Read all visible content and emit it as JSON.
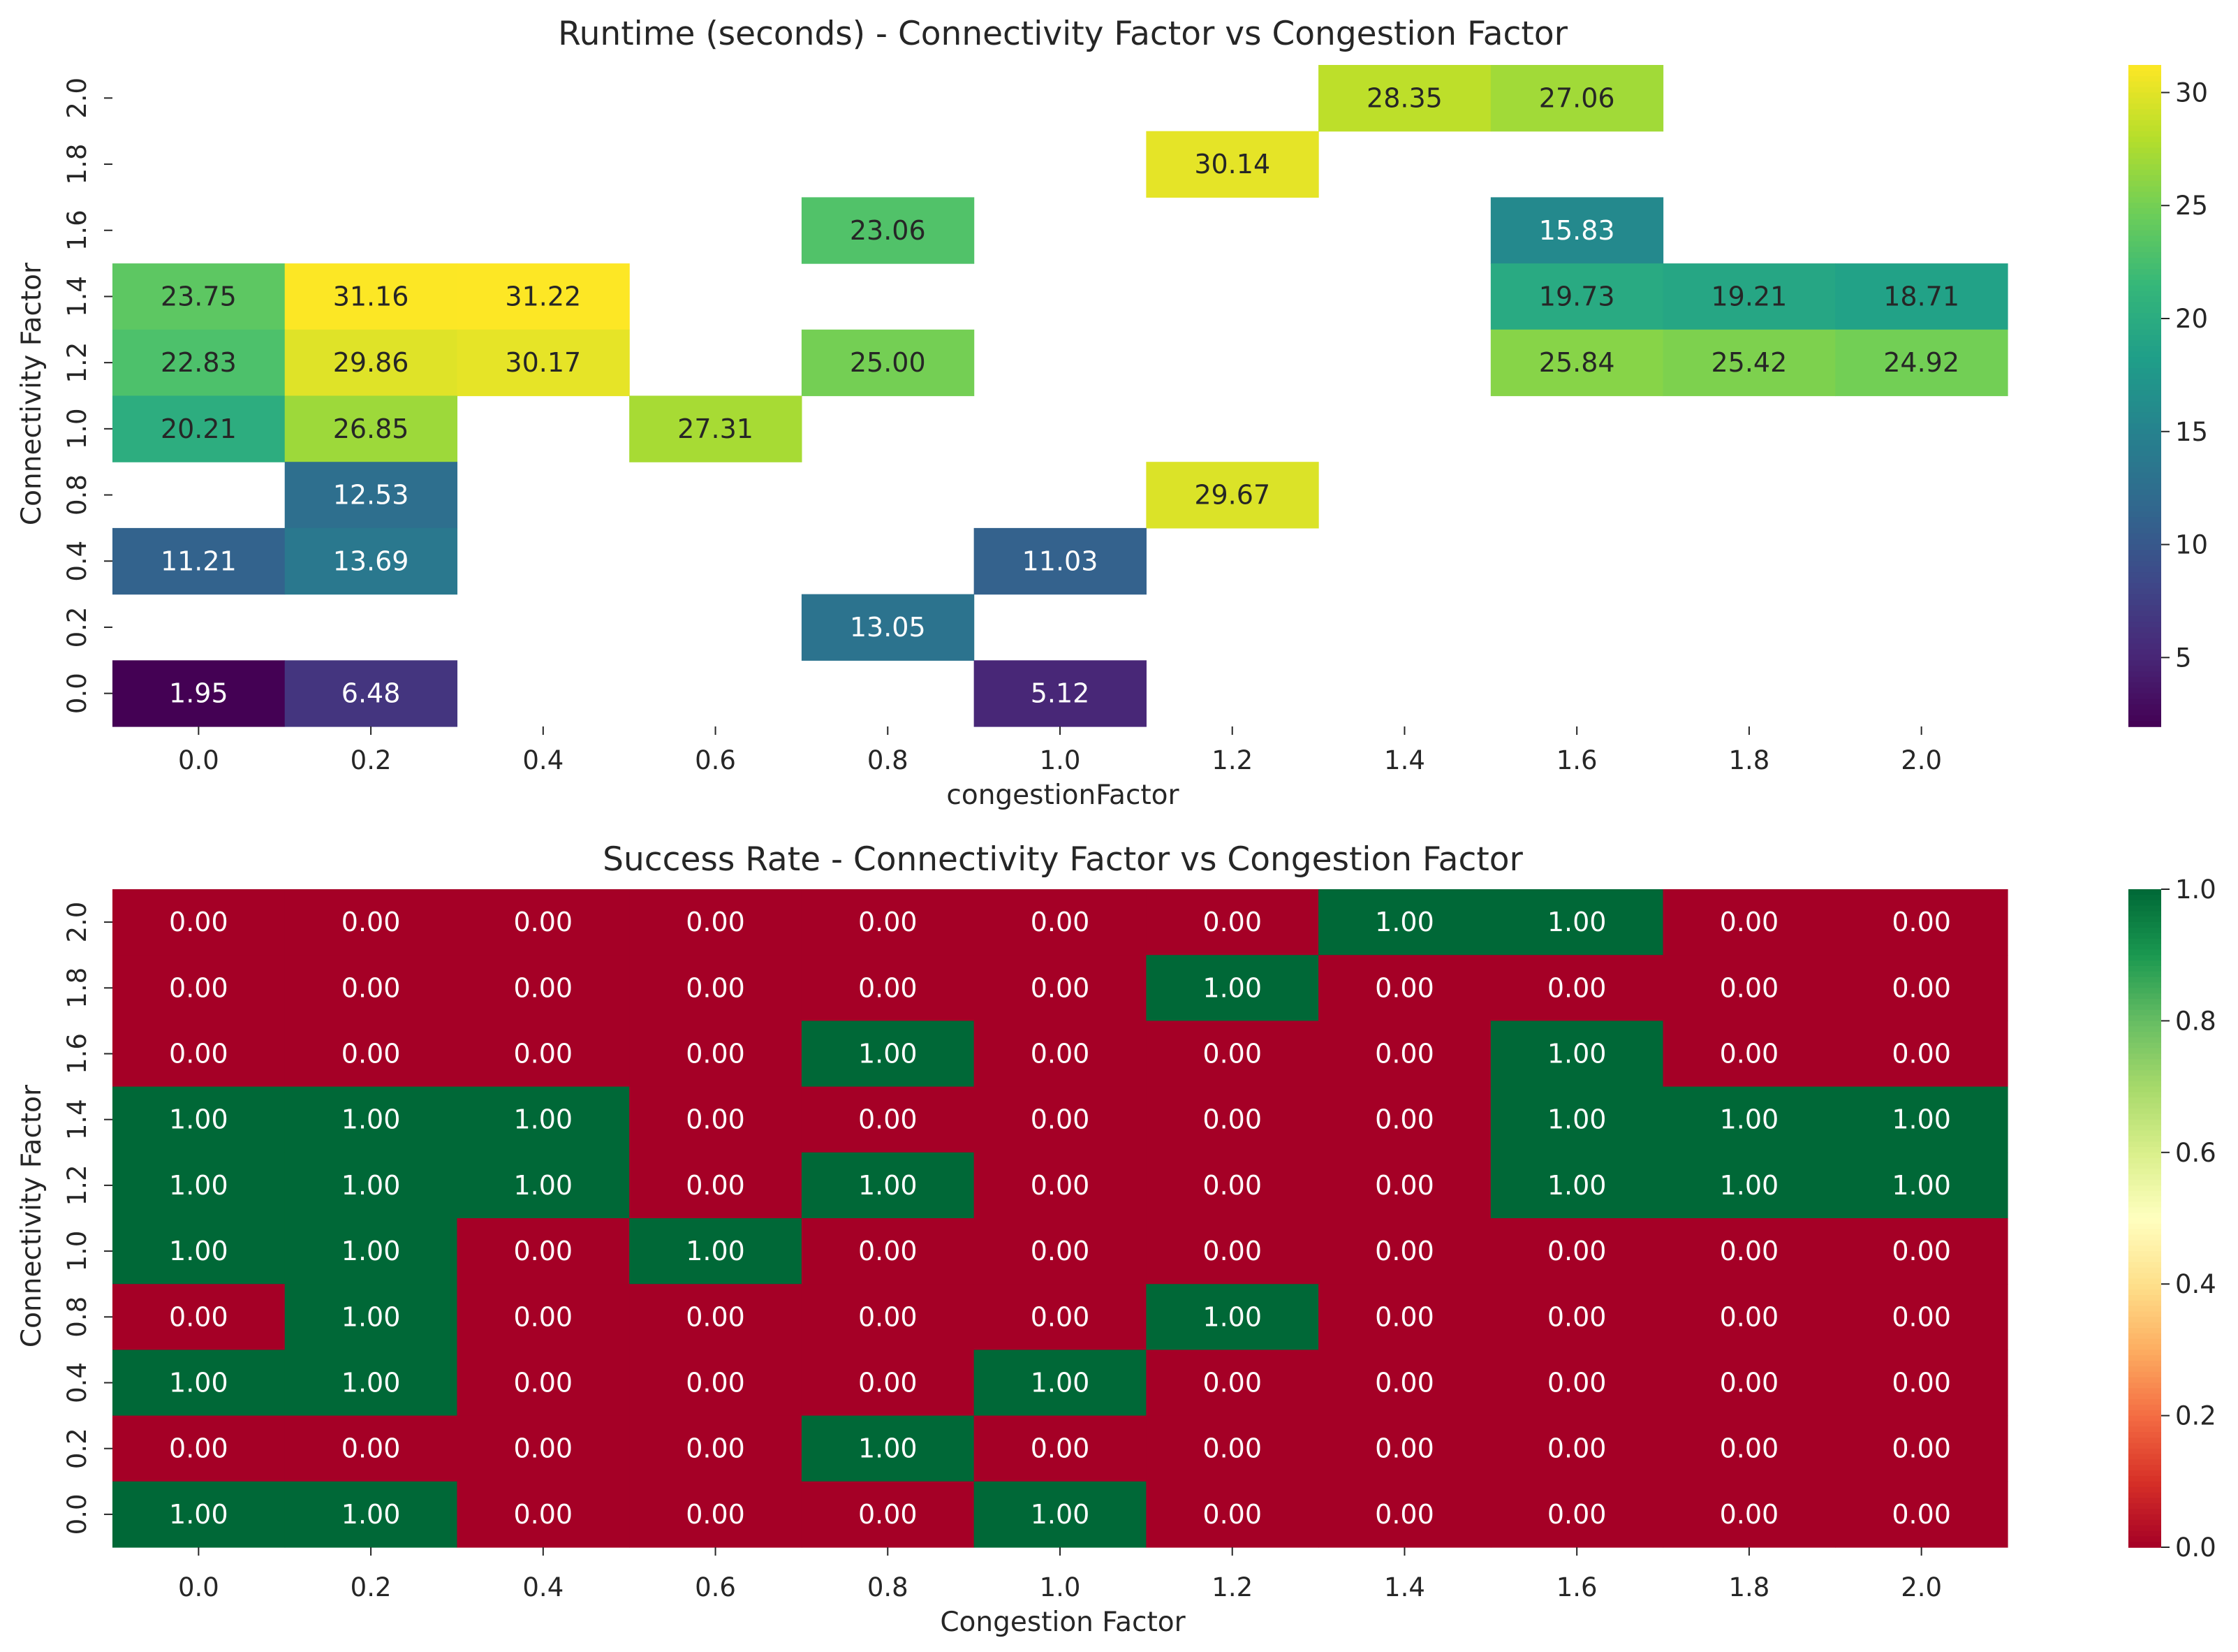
{
  "chart_data": [
    {
      "type": "heatmap",
      "title": "Runtime (seconds) - Connectivity Factor vs Congestion Factor",
      "xlabel": "congestionFactor",
      "ylabel": "Connectivity Factor",
      "x_tick_labels": [
        "0.0",
        "0.2",
        "0.4",
        "0.6",
        "0.8",
        "1.0",
        "1.2",
        "1.4",
        "1.6",
        "1.8",
        "2.0"
      ],
      "y_tick_labels": [
        "2.0",
        "1.8",
        "1.6",
        "1.4",
        "1.2",
        "1.0",
        "0.8",
        "0.4",
        "0.2",
        "0.0"
      ],
      "values": [
        [
          null,
          null,
          null,
          null,
          null,
          null,
          null,
          28.35,
          27.06,
          null,
          null
        ],
        [
          null,
          null,
          null,
          null,
          null,
          null,
          30.14,
          null,
          null,
          null,
          null
        ],
        [
          null,
          null,
          null,
          null,
          23.06,
          null,
          null,
          null,
          15.83,
          null,
          null
        ],
        [
          23.75,
          31.16,
          31.22,
          null,
          null,
          null,
          null,
          null,
          19.73,
          19.21,
          18.71
        ],
        [
          22.83,
          29.86,
          30.17,
          null,
          25.0,
          null,
          null,
          null,
          25.84,
          25.42,
          24.92
        ],
        [
          20.21,
          26.85,
          null,
          27.31,
          null,
          null,
          null,
          null,
          null,
          null,
          null
        ],
        [
          null,
          12.53,
          null,
          null,
          null,
          null,
          29.67,
          null,
          null,
          null,
          null
        ],
        [
          11.21,
          13.69,
          null,
          null,
          null,
          11.03,
          null,
          null,
          null,
          null,
          null
        ],
        [
          null,
          null,
          null,
          null,
          13.05,
          null,
          null,
          null,
          null,
          null,
          null
        ],
        [
          1.95,
          6.48,
          null,
          null,
          null,
          5.12,
          null,
          null,
          null,
          null,
          null
        ]
      ],
      "value_format": "2 decimals",
      "colormap": "viridis",
      "vmin": 1.95,
      "vmax": 31.22,
      "colorbar_ticks": [
        "5",
        "10",
        "15",
        "20",
        "25",
        "30"
      ],
      "colorbar_tick_values": [
        5,
        10,
        15,
        20,
        25,
        30
      ]
    },
    {
      "type": "heatmap",
      "title": "Success Rate - Connectivity Factor vs Congestion Factor",
      "xlabel": "Congestion Factor",
      "ylabel": "Connectivity Factor",
      "x_tick_labels": [
        "0.0",
        "0.2",
        "0.4",
        "0.6",
        "0.8",
        "1.0",
        "1.2",
        "1.4",
        "1.6",
        "1.8",
        "2.0"
      ],
      "y_tick_labels": [
        "2.0",
        "1.8",
        "1.6",
        "1.4",
        "1.2",
        "1.0",
        "0.8",
        "0.4",
        "0.2",
        "0.0"
      ],
      "values": [
        [
          0,
          0,
          0,
          0,
          0,
          0,
          0,
          1,
          1,
          0,
          0
        ],
        [
          0,
          0,
          0,
          0,
          0,
          0,
          1,
          0,
          0,
          0,
          0
        ],
        [
          0,
          0,
          0,
          0,
          1,
          0,
          0,
          0,
          1,
          0,
          0
        ],
        [
          1,
          1,
          1,
          0,
          0,
          0,
          0,
          0,
          1,
          1,
          1
        ],
        [
          1,
          1,
          1,
          0,
          1,
          0,
          0,
          0,
          1,
          1,
          1
        ],
        [
          1,
          1,
          0,
          1,
          0,
          0,
          0,
          0,
          0,
          0,
          0
        ],
        [
          0,
          1,
          0,
          0,
          0,
          0,
          1,
          0,
          0,
          0,
          0
        ],
        [
          1,
          1,
          0,
          0,
          0,
          1,
          0,
          0,
          0,
          0,
          0
        ],
        [
          0,
          0,
          0,
          0,
          1,
          0,
          0,
          0,
          0,
          0,
          0
        ],
        [
          1,
          1,
          0,
          0,
          0,
          1,
          0,
          0,
          0,
          0,
          0
        ]
      ],
      "value_format": "2 decimals",
      "colormap": "RdYlGn",
      "vmin": 0,
      "vmax": 1,
      "colorbar_ticks": [
        "0.0",
        "0.2",
        "0.4",
        "0.6",
        "0.8",
        "1.0"
      ],
      "colorbar_tick_values": [
        0,
        0.2,
        0.4,
        0.6,
        0.8,
        1.0
      ]
    }
  ]
}
